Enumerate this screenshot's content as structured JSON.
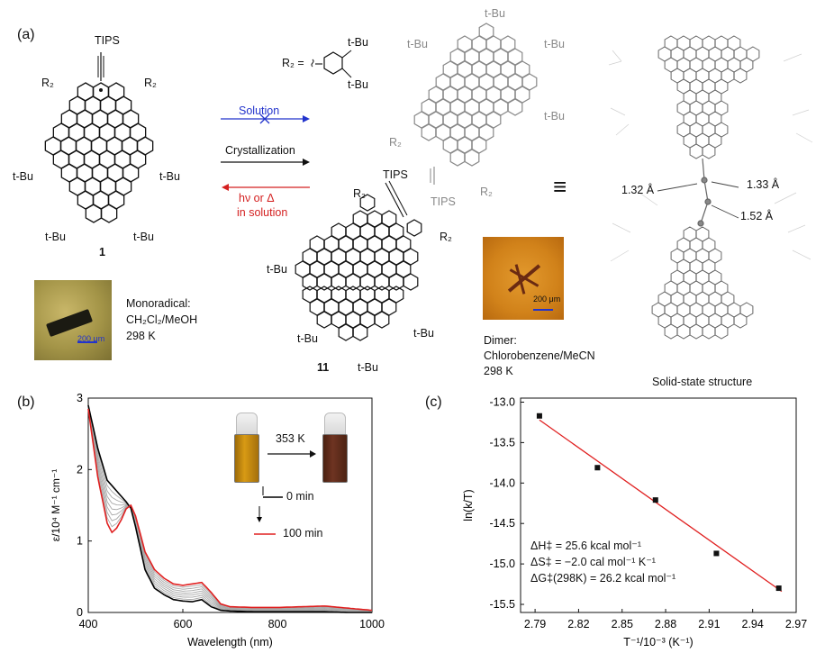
{
  "panel_a": {
    "letter": "(a)",
    "compound1": {
      "top_label": "TIPS",
      "r2_left": "R₂",
      "r2_right": "R₂",
      "tbu_left": "t-Bu",
      "tbu_right": "t-Bu",
      "tbu_bottom_left": "t-Bu",
      "tbu_bottom_right": "t-Bu",
      "number": "1"
    },
    "r2_definition": {
      "prefix": "R₂ =",
      "tbu_top": "t-Bu",
      "tbu_bottom": "t-Bu"
    },
    "arrows": {
      "solution": "Solution",
      "crystallization": "Crystallization",
      "reverse_line1": "hν or Δ",
      "reverse_line2": "in solution",
      "solution_color": "#2233cc",
      "reverse_color": "#d42020"
    },
    "dimer": {
      "tbu_top": "t-Bu",
      "tbu_upper_left": "t-Bu",
      "tbu_upper_right": "t-Bu",
      "tbu_mid_right": "t-Bu",
      "r2_upper_left": "R₂",
      "r2_upper_right": "R₂",
      "tips_left": "TIPS",
      "tips_right": "TIPS",
      "r2_lower_top": "R₂",
      "r2_lower_right": "R₂",
      "tbu_lower_left": "t-Bu",
      "tbu_lower_bottom_left": "t-Bu",
      "tbu_lower_bottom_right": "t-Bu",
      "tbu_lower_bottom": "t-Bu",
      "number": "11"
    },
    "monoradical": {
      "line1": "Monoradical:",
      "line2": "CH₂Cl₂/MeOH",
      "line3": "298 K",
      "scalebar": "200 μm"
    },
    "dimer_crystal": {
      "line1": "Dimer:",
      "line2": "Chlorobenzene/MeCN",
      "line3": "298 K",
      "scalebar": "200 μm"
    },
    "equals": "≡",
    "bonds": {
      "b1": "1.32 Å",
      "b2": "1.33 Å",
      "b3": "1.52 Å"
    },
    "solid_state": "Solid-state structure"
  },
  "panel_b": {
    "letter": "(b)",
    "vial_temp": "353 K",
    "legend_start": "0 min",
    "legend_end": "100 min",
    "colors": {
      "start": "#000000",
      "end": "#e02020",
      "intermediate": "#a8a8a8"
    },
    "chart_data": {
      "type": "line",
      "xlabel": "Wavelength (nm)",
      "ylabel": "ε/10⁴ M⁻¹ cm⁻¹",
      "xlim": [
        400,
        1000
      ],
      "ylim": [
        0,
        3
      ],
      "xticks": [
        400,
        600,
        800,
        1000
      ],
      "yticks": [
        0,
        1,
        2,
        3
      ],
      "series": [
        {
          "name": "0 min",
          "x": [
            400,
            420,
            440,
            460,
            480,
            490,
            500,
            520,
            540,
            560,
            580,
            600,
            620,
            640,
            660,
            680,
            700,
            750,
            800,
            850,
            900,
            950,
            1000
          ],
          "y": [
            2.9,
            2.3,
            1.85,
            1.7,
            1.55,
            1.46,
            1.2,
            0.6,
            0.34,
            0.25,
            0.18,
            0.16,
            0.15,
            0.18,
            0.08,
            0.03,
            0.02,
            0.01,
            0.01,
            0.01,
            0.01,
            0.0,
            0.0
          ]
        },
        {
          "name": "100 min",
          "x": [
            400,
            420,
            440,
            450,
            460,
            470,
            480,
            490,
            500,
            520,
            540,
            560,
            580,
            600,
            620,
            640,
            660,
            680,
            700,
            750,
            800,
            850,
            900,
            950,
            1000
          ],
          "y": [
            2.85,
            1.9,
            1.25,
            1.12,
            1.18,
            1.3,
            1.45,
            1.5,
            1.35,
            0.85,
            0.6,
            0.48,
            0.4,
            0.38,
            0.4,
            0.42,
            0.28,
            0.12,
            0.08,
            0.07,
            0.07,
            0.08,
            0.09,
            0.06,
            0.03
          ]
        }
      ]
    }
  },
  "panel_c": {
    "letter": "(c)",
    "annotation_h": "ΔH‡ = 25.6 kcal mol⁻¹",
    "annotation_s": "ΔS‡ = −2.0 cal mol⁻¹ K⁻¹",
    "annotation_g": "ΔG‡(298K) = 26.2 kcal mol⁻¹",
    "fit_color": "#e02020",
    "chart_data": {
      "type": "scatter",
      "xlabel": "T⁻¹/10⁻³ (K⁻¹)",
      "ylabel": "ln(k/T)",
      "xlim": [
        2.78,
        2.97
      ],
      "ylim": [
        -15.6,
        -12.95
      ],
      "xticks": [
        2.79,
        2.82,
        2.85,
        2.88,
        2.91,
        2.94,
        2.97
      ],
      "xticklabels": [
        "2.79",
        "2.82",
        "2.85",
        "2.88",
        "2.91",
        "2.94",
        "2.97"
      ],
      "yticks": [
        -13.0,
        -13.5,
        -14.0,
        -14.5,
        -15.0,
        -15.5
      ],
      "yticklabels": [
        "-13.0",
        "-13.5",
        "-14.0",
        "-14.5",
        "-15.0",
        "-15.5"
      ],
      "points": {
        "x": [
          2.793,
          2.833,
          2.873,
          2.915,
          2.958
        ],
        "y": [
          -13.17,
          -13.81,
          -14.21,
          -14.87,
          -15.3
        ]
      },
      "fit": {
        "x": [
          2.793,
          2.96
        ],
        "y": [
          -13.22,
          -15.34
        ]
      }
    }
  }
}
